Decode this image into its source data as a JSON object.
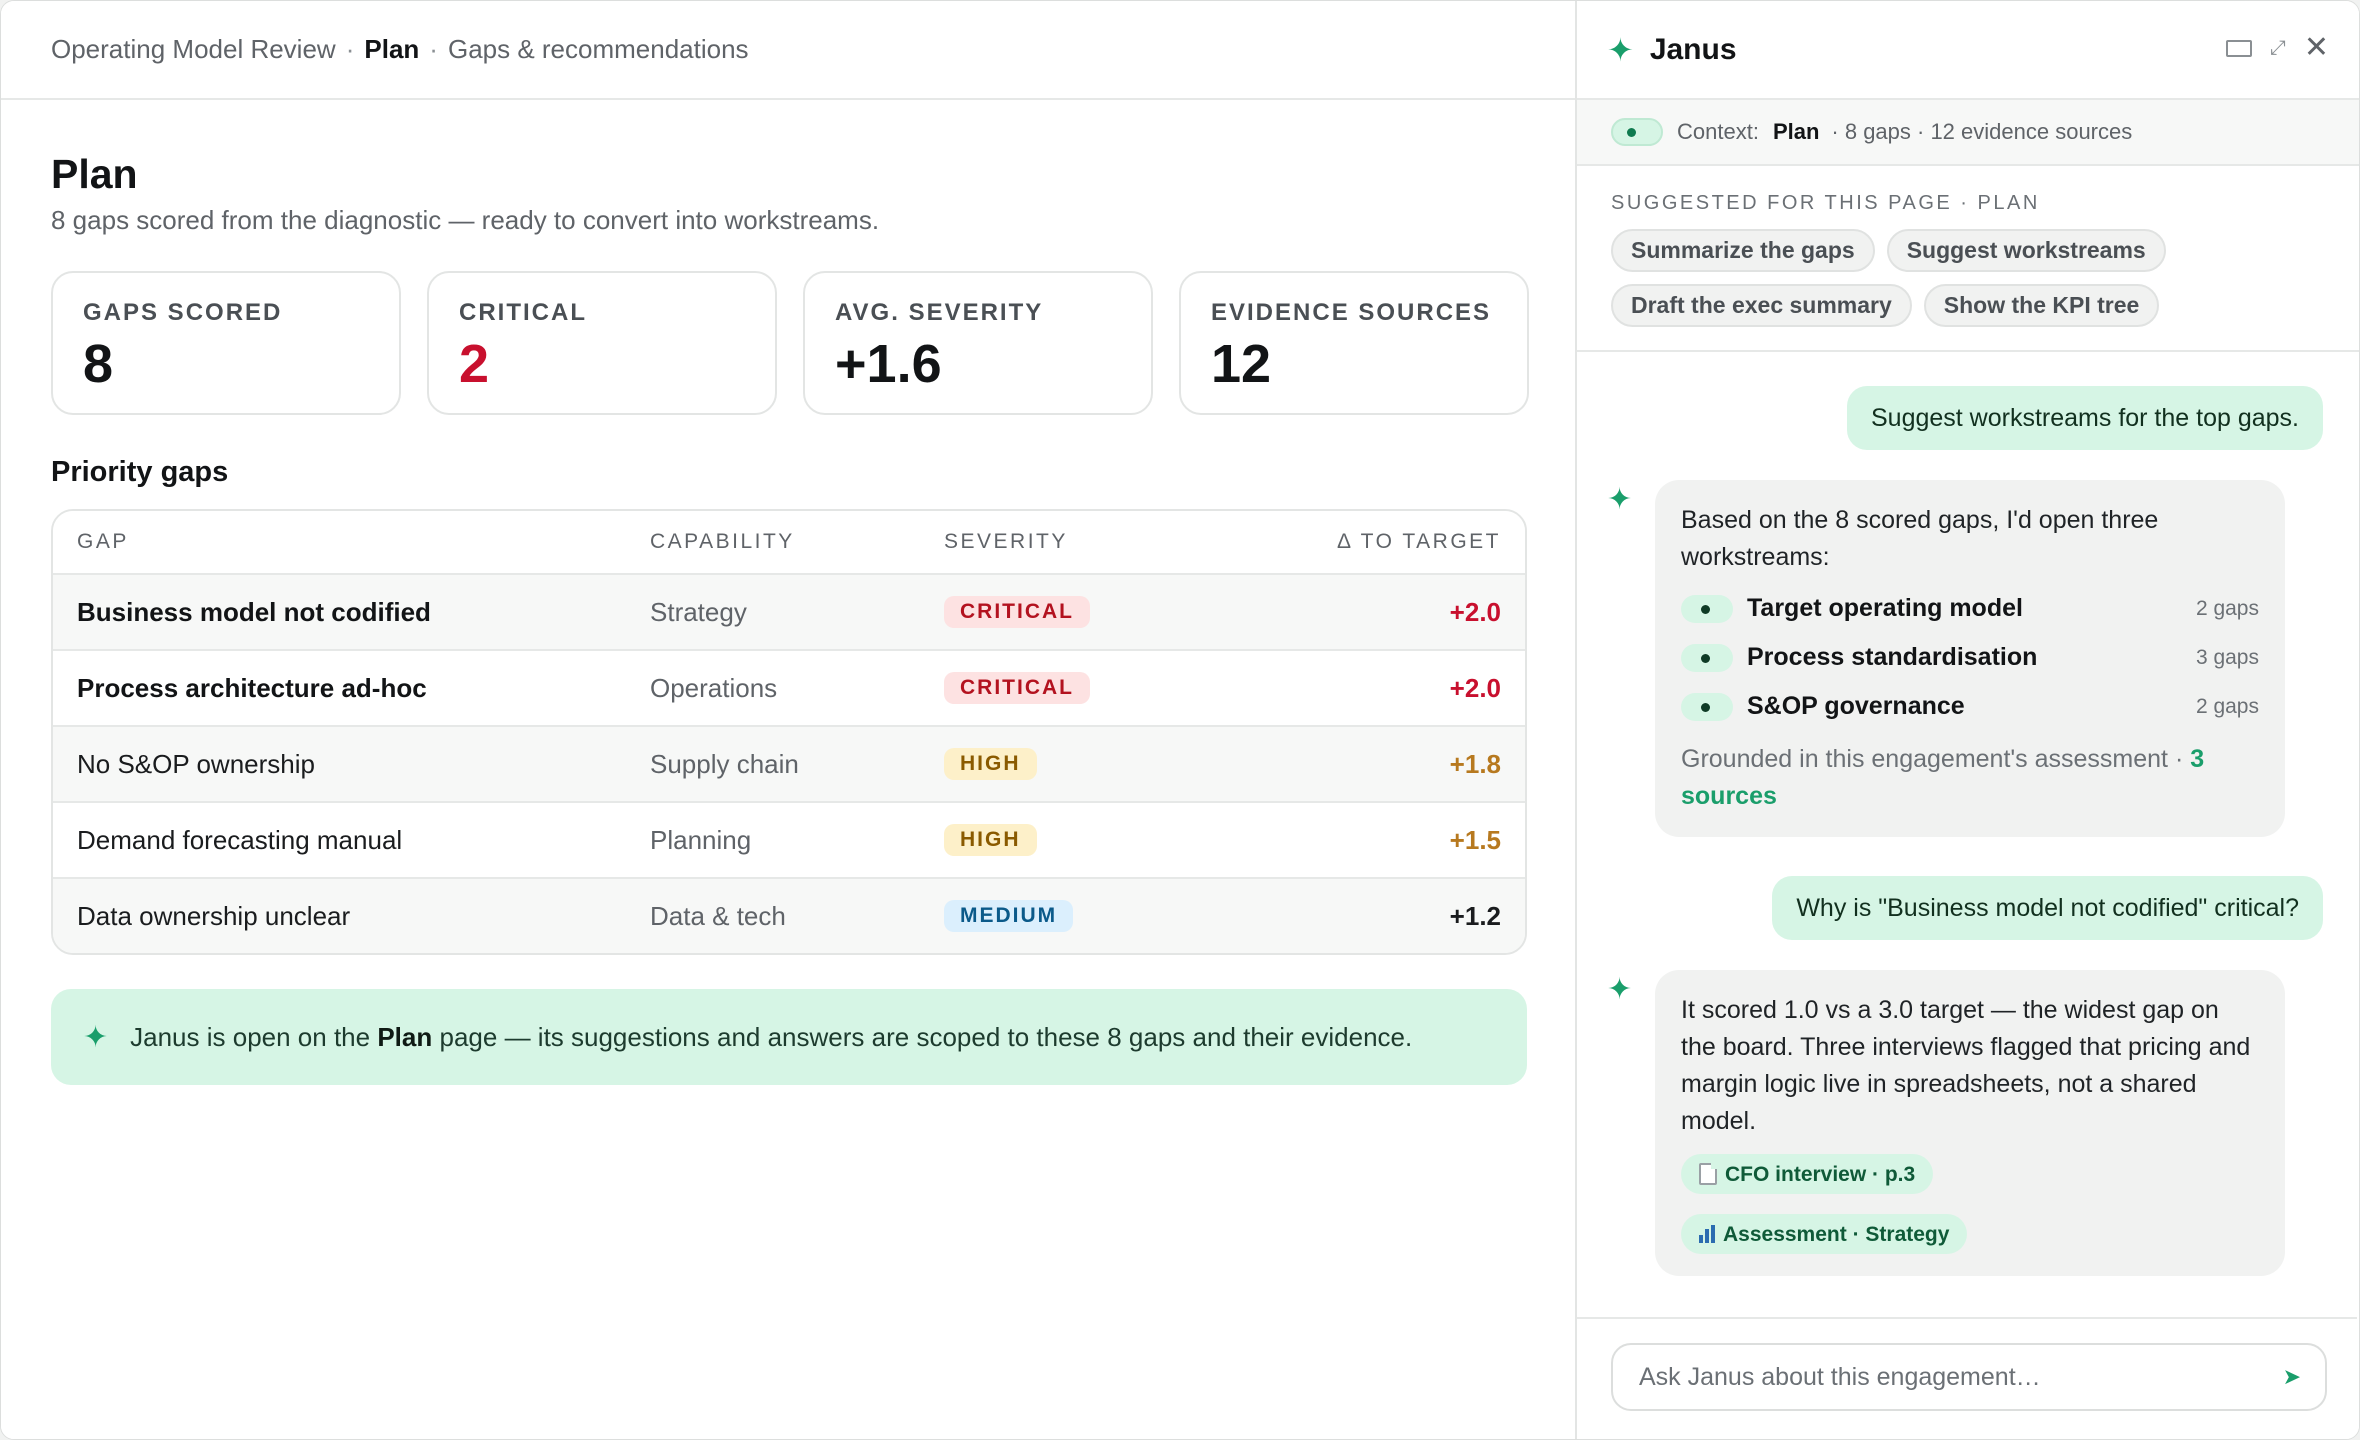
{
  "breadcrumb": {
    "root": "Operating Model Review",
    "separator": "·",
    "current": "Plan",
    "section": "Gaps & recommendations"
  },
  "page": {
    "title": "Plan",
    "subtitle": "8 gaps scored from the diagnostic — ready to convert into workstreams."
  },
  "stats": [
    {
      "label": "GAPS SCORED",
      "value": "8"
    },
    {
      "label": "CRITICAL",
      "value": "2",
      "color": "#c8102e"
    },
    {
      "label": "AVG. SEVERITY",
      "value": "+1.6"
    },
    {
      "label": "EVIDENCE SOURCES",
      "value": "12"
    }
  ],
  "priority": {
    "title": "Priority gaps",
    "columns": {
      "gap": "GAP",
      "capability": "CAPABILITY",
      "severity": "SEVERITY",
      "delta": "Δ TO TARGET"
    },
    "rows": [
      {
        "gap": "Business model not codified",
        "capability": "Strategy",
        "severity": "CRITICAL",
        "delta": "+2.0"
      },
      {
        "gap": "Process architecture ad-hoc",
        "capability": "Operations",
        "severity": "CRITICAL",
        "delta": "+2.0"
      },
      {
        "gap": "No S&OP ownership",
        "capability": "Supply chain",
        "severity": "HIGH",
        "delta": "+1.8"
      },
      {
        "gap": "Demand forecasting manual",
        "capability": "Planning",
        "severity": "HIGH",
        "delta": "+1.5"
      },
      {
        "gap": "Data ownership unclear",
        "capability": "Data & tech",
        "severity": "MEDIUM",
        "delta": "+1.2"
      }
    ]
  },
  "banner": {
    "icon": "sparkle-icon",
    "prefix": "Janus is open on the",
    "page": "Plan",
    "suffix": "page — its suggestions and answers are scoped to these 8 gaps and their evidence."
  },
  "assistant": {
    "name": "Janus",
    "context": {
      "label": "Context:",
      "page": "Plan",
      "details": "· 8 gaps · 12 evidence sources"
    },
    "suggested_label": "SUGGESTED FOR THIS PAGE · PLAN",
    "suggestions": [
      "Summarize the gaps",
      "Suggest workstreams",
      "Draft the exec summary",
      "Show the KPI tree"
    ],
    "messages": {
      "user1": "Suggest workstreams for the top gaps.",
      "bot1_intro": "Based on the 8 scored gaps, I'd open three workstreams:",
      "workstreams": [
        {
          "name": "Target operating model",
          "count": "2 gaps"
        },
        {
          "name": "Process standardisation",
          "count": "3 gaps"
        },
        {
          "name": "S&OP governance",
          "count": "2 gaps"
        }
      ],
      "bot1_grounded": "Grounded in this engagement's assessment ·",
      "bot1_sources": "3 sources",
      "user2": "Why is \"Business model not codified\" critical?",
      "bot2_text": "It scored 1.0 vs a 3.0 target — the widest gap on the board. Three interviews flagged that pricing and margin logic live in spreadsheets, not a shared model.",
      "citations": [
        "CFO interview · p.3",
        "Assessment · Strategy"
      ]
    },
    "composer_placeholder": "Ask Janus about this engagement…"
  }
}
